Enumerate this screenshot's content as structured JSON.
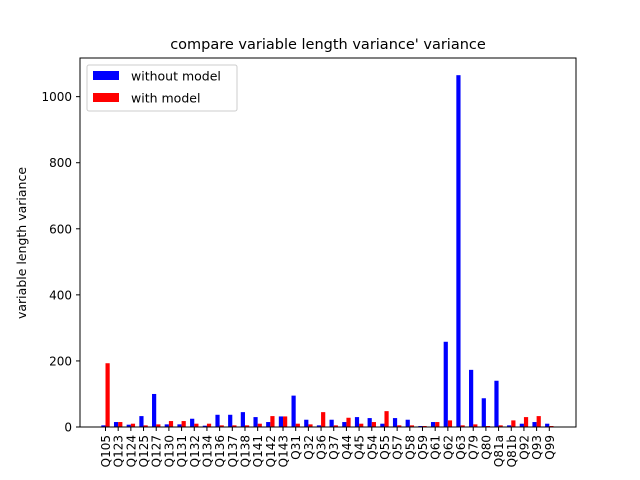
{
  "chart_data": {
    "type": "bar",
    "title": "compare variable length variance' variance",
    "xlabel": "",
    "ylabel": "variable length variance",
    "ylim": [
      0,
      1117
    ],
    "yticks": [
      0,
      200,
      400,
      600,
      800,
      1000
    ],
    "grid": false,
    "legend_position": "top-left",
    "categories": [
      "Q105",
      "Q123",
      "Q124",
      "Q125",
      "Q127",
      "Q130",
      "Q131",
      "Q132",
      "Q134",
      "Q136",
      "Q137",
      "Q138",
      "Q141",
      "Q142",
      "Q143",
      "Q31",
      "Q32",
      "Q36",
      "Q37",
      "Q44",
      "Q45",
      "Q54",
      "Q55",
      "Q57",
      "Q58",
      "Q59",
      "Q61",
      "Q62",
      "Q63",
      "Q79",
      "Q80",
      "Q81a",
      "Q81b",
      "Q92",
      "Q93",
      "Q99"
    ],
    "series": [
      {
        "name": "without model",
        "color": "#0000ff",
        "values": [
          5,
          15,
          7,
          33,
          100,
          8,
          8,
          25,
          4,
          37,
          37,
          45,
          30,
          15,
          32,
          95,
          22,
          5,
          22,
          15,
          30,
          27,
          10,
          27,
          22,
          3,
          15,
          258,
          1065,
          173,
          87,
          140,
          5,
          10,
          15,
          10
        ]
      },
      {
        "name": "with model",
        "color": "#ff0000",
        "values": [
          193,
          15,
          10,
          5,
          8,
          18,
          18,
          10,
          10,
          5,
          5,
          5,
          10,
          33,
          32,
          10,
          8,
          45,
          5,
          28,
          10,
          15,
          48,
          5,
          5,
          3,
          15,
          20,
          5,
          8,
          3,
          5,
          20,
          30,
          33,
          3
        ]
      }
    ]
  }
}
